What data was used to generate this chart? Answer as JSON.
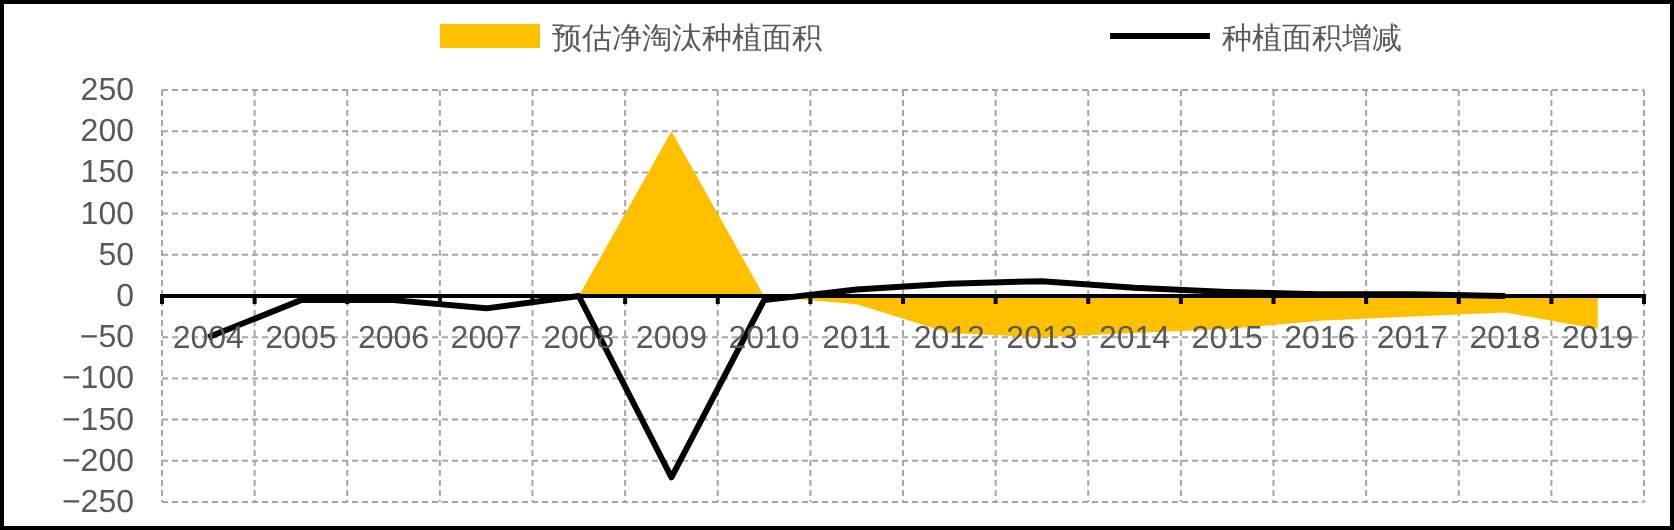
{
  "chart_data": {
    "type": "area",
    "categories": [
      "2004",
      "2005",
      "2006",
      "2007",
      "2008",
      "2009",
      "2010",
      "2011",
      "2012",
      "2013",
      "2014",
      "2015",
      "2016",
      "2017",
      "2018",
      "2019"
    ],
    "series": [
      {
        "name": "预估净淘汰种植面积",
        "color": "#ffc000",
        "values": [
          0,
          0,
          0,
          0,
          0,
          200,
          0,
          -10,
          -45,
          -50,
          -45,
          -40,
          -30,
          -25,
          -20,
          -40
        ]
      },
      {
        "name": "种植面积增减",
        "type": "line",
        "color": "#000000",
        "values": [
          -50,
          -5,
          -5,
          -15,
          0,
          -220,
          -5,
          8,
          15,
          18,
          10,
          5,
          2,
          2,
          0,
          null
        ]
      }
    ],
    "ylim": [
      -250,
      250
    ],
    "yticks": [
      -250,
      -200,
      -150,
      -100,
      -50,
      0,
      50,
      100,
      150,
      200,
      250
    ],
    "grid": true,
    "legend": "top"
  }
}
